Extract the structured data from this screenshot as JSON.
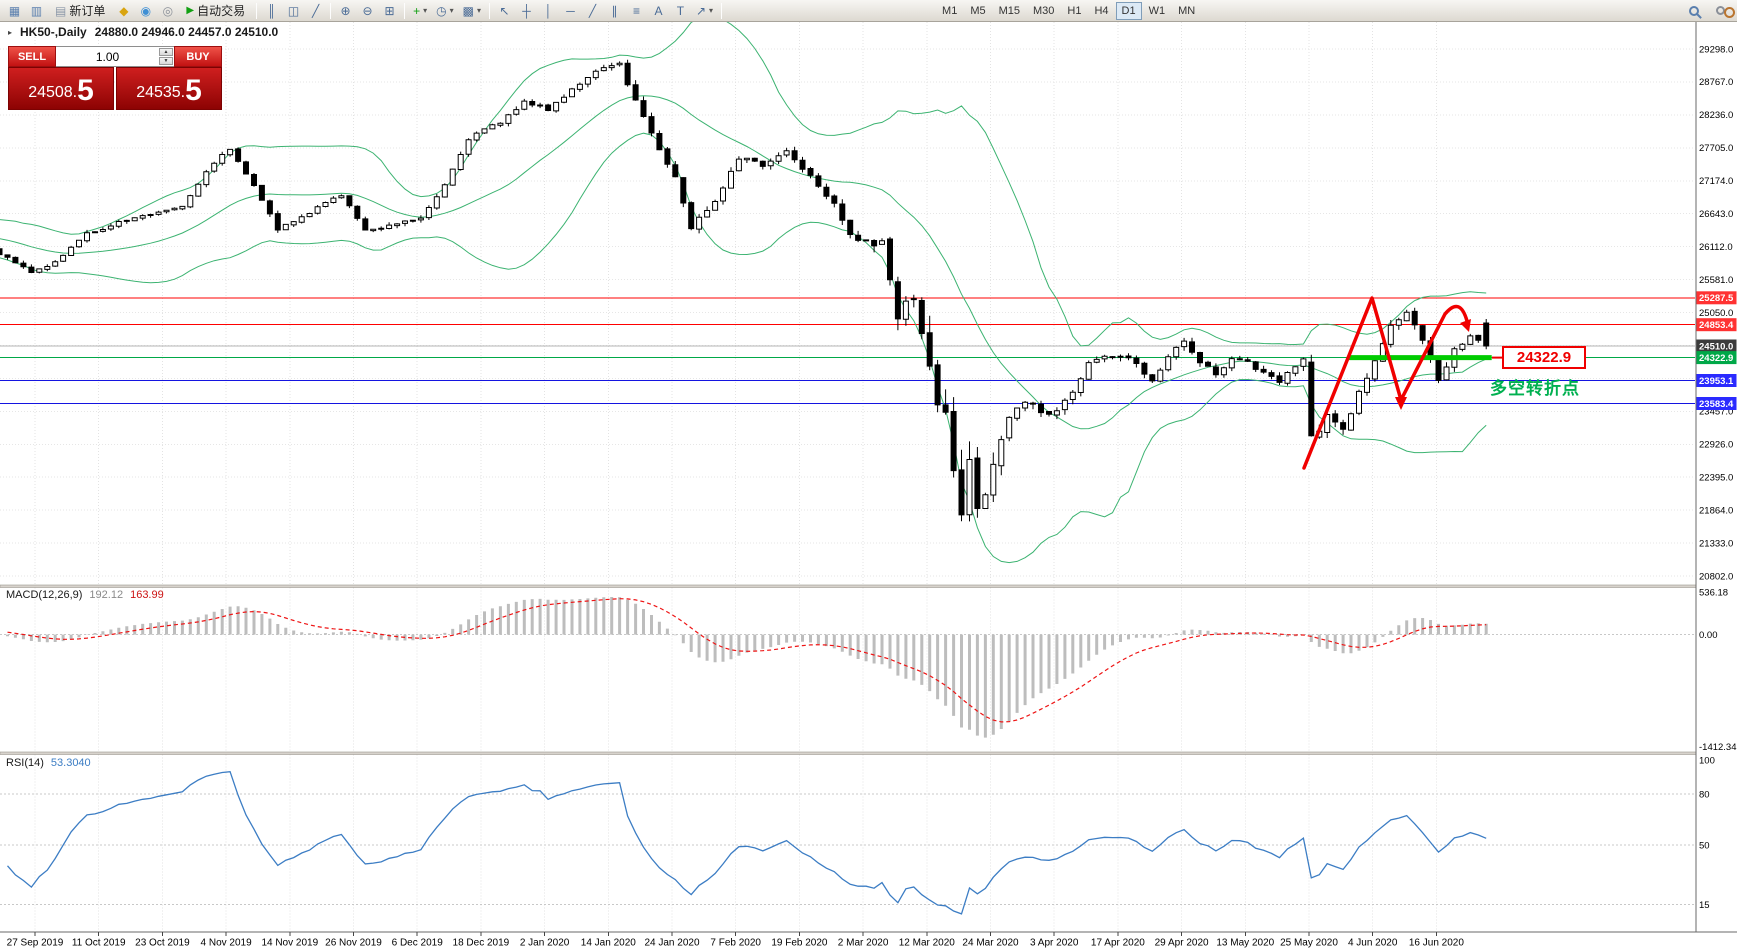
{
  "app": {
    "background": "#d6d3ce"
  },
  "toolbar": {
    "file_icons": [
      {
        "name": "new-chart-icon",
        "glyph": "▦",
        "color": "#5a7fae"
      },
      {
        "name": "profiles-icon",
        "glyph": "▥",
        "color": "#5a7fae"
      }
    ],
    "new_order": {
      "label": "新订单",
      "icon_glyph": "▤"
    },
    "app_icons": [
      {
        "name": "metaeditor-icon",
        "glyph": "◆",
        "color": "#d9a40f"
      },
      {
        "name": "market-icon",
        "glyph": "◉",
        "color": "#3f8fd4"
      },
      {
        "name": "mql5-icon",
        "glyph": "◎",
        "color": "#8a8f98"
      }
    ],
    "autotrading": {
      "label": "自动交易",
      "icon_glyph": "▶"
    },
    "chart_mode_icons": [
      {
        "name": "bars-mode-icon",
        "glyph": "║",
        "color": "#4a6b96"
      },
      {
        "name": "candles-mode-icon",
        "glyph": "◫",
        "color": "#4a6b96"
      },
      {
        "name": "line-mode-icon",
        "glyph": "╱",
        "color": "#4a6b96"
      }
    ],
    "zoom_icons": [
      {
        "name": "zoom-in-icon",
        "glyph": "⊕",
        "color": "#4a6b96"
      },
      {
        "name": "zoom-out-icon",
        "glyph": "⊖",
        "color": "#4a6b96"
      },
      {
        "name": "tile-windows-icon",
        "glyph": "⊞",
        "color": "#4a6b96"
      }
    ],
    "dropdown_icons": [
      {
        "name": "indicators-icon",
        "glyph": "+",
        "color": "#12a012",
        "dropdown": true
      },
      {
        "name": "periods-icon",
        "glyph": "◷",
        "color": "#4a6b96",
        "dropdown": true
      },
      {
        "name": "templates-icon",
        "glyph": "▩",
        "color": "#4a6b96",
        "dropdown": true
      }
    ],
    "draw_icons": [
      {
        "name": "cursor-icon",
        "glyph": "↖",
        "color": "#4a6b96"
      },
      {
        "name": "crosshair-icon",
        "glyph": "┼",
        "color": "#4a6b96"
      },
      {
        "name": "vline-tool-icon",
        "glyph": "│",
        "color": "#4a6b96"
      },
      {
        "name": "hline-tool-icon",
        "glyph": "─",
        "color": "#4a6b96"
      },
      {
        "name": "trendline-tool-icon",
        "glyph": "╱",
        "color": "#4a6b96"
      },
      {
        "name": "channel-tool-icon",
        "glyph": "∥",
        "color": "#4a6b96"
      },
      {
        "name": "fibo-tool-icon",
        "glyph": "≡",
        "color": "#4a6b96"
      },
      {
        "name": "text-tool-icon",
        "glyph": "A",
        "color": "#4a6b96"
      },
      {
        "name": "label-tool-icon",
        "glyph": "T",
        "color": "#4a6b96"
      },
      {
        "name": "arrows-tool-icon",
        "glyph": "↗",
        "color": "#4a6b96",
        "dropdown": true
      }
    ],
    "timeframes": [
      "M1",
      "M5",
      "M15",
      "M30",
      "H1",
      "H4",
      "D1",
      "W1",
      "MN"
    ],
    "active_timeframe": "D1"
  },
  "trade_panel": {
    "sell_label": "SELL",
    "buy_label": "BUY",
    "volume": "1.00",
    "sell_price": "24508.",
    "sell_price_big": "5",
    "buy_price": "24535.",
    "buy_price_big": "5"
  },
  "chart": {
    "title_symbol": "HK50-,Daily",
    "title_ohlc": "24880.0 24946.0 24457.0 24510.0"
  },
  "indicator_labels": {
    "macd_name": "MACD(12,26,9)",
    "macd_main_value": "192.12",
    "macd_signal_value": "163.99",
    "rsi_name": "RSI(14)",
    "rsi_value": "53.3040"
  },
  "annotations": {
    "price_callout": "24322.9",
    "turning_point": "多空转折点"
  },
  "chart_data": {
    "type": "candlestick",
    "symbol": "HK50-",
    "period": "Daily",
    "ohlc_current": {
      "open": 24880.0,
      "high": 24946.0,
      "low": 24457.0,
      "close": 24510.0
    },
    "price_axis_labels": [
      29298.0,
      28767.0,
      28236.0,
      27705.0,
      27174.0,
      26643.0,
      26112.0,
      25581.0,
      25050.0,
      24519.0,
      23988.0,
      23457.0,
      22926.0,
      22395.0,
      21864.0,
      21333.0,
      20802.0
    ],
    "date_labels": [
      "27 Sep 2019",
      "11 Oct 2019",
      "23 Oct 2019",
      "4 Nov 2019",
      "14 Nov 2019",
      "26 Nov 2019",
      "6 Dec 2019",
      "18 Dec 2019",
      "2 Jan 2020",
      "14 Jan 2020",
      "24 Jan 2020",
      "7 Feb 2020",
      "19 Feb 2020",
      "2 Mar 2020",
      "12 Mar 2020",
      "24 Mar 2020",
      "3 Apr 2020",
      "17 Apr 2020",
      "29 Apr 2020",
      "13 May 2020",
      "25 May 2020",
      "4 Jun 2020",
      "16 Jun 2020"
    ],
    "hlines": [
      {
        "price": 25287.5,
        "color": "#ff0000",
        "tag_bg": "#ff3232",
        "width": 1,
        "dash": ""
      },
      {
        "price": 24853.4,
        "color": "#ff0000",
        "tag_bg": "#ff3232",
        "width": 1,
        "dash": ""
      },
      {
        "price": 24510.0,
        "color": "#b4b4b4",
        "tag_bg": "#3c3c3c",
        "width": 1,
        "dash": ""
      },
      {
        "price": 24322.9,
        "color": "#00a848",
        "tag_bg": "#00a848",
        "width": 1,
        "dash": ""
      },
      {
        "price": 23953.1,
        "color": "#1414e0",
        "tag_bg": "#2a2aff",
        "width": 1,
        "dash": ""
      },
      {
        "price": 23583.4,
        "color": "#1414e0",
        "tag_bg": "#2a2aff",
        "width": 1,
        "dash": ""
      }
    ],
    "support_segment": {
      "price": 24322.9,
      "from_bar": 169,
      "to_bar": 187,
      "color": "#00cc00",
      "width": 5
    },
    "bollinger": {
      "period": 20,
      "deviation": 2,
      "color": "#3CB371"
    },
    "macd": {
      "fast": 12,
      "slow": 26,
      "signal": 9,
      "axis_labels": [
        {
          "v": 536.18,
          "t": "536.18"
        },
        {
          "v": 0,
          "t": "0.00"
        },
        {
          "v": -1412.34,
          "t": "-1412.34"
        }
      ],
      "range_max": 536.18,
      "range_min": -1412.34,
      "hist_color": "#bdbdbd",
      "signal_color": "#ee1414"
    },
    "rsi": {
      "period": 14,
      "axis_labels": [
        {
          "v": 100,
          "t": "100"
        },
        {
          "v": 80,
          "t": "80"
        },
        {
          "v": 50,
          "t": "50"
        },
        {
          "v": 15,
          "t": "15"
        }
      ],
      "levels": [
        80,
        50,
        15
      ],
      "color": "#3c7dc4"
    },
    "bars_from": -40,
    "bars_to": 186,
    "close_anchors": [
      [
        -40,
        25350
      ],
      [
        -33,
        25900
      ],
      [
        -26,
        26350
      ],
      [
        -18,
        26500
      ],
      [
        -10,
        26150
      ],
      [
        -4,
        26150
      ],
      [
        0,
        25960
      ],
      [
        3,
        25680
      ],
      [
        6,
        25860
      ],
      [
        10,
        26320
      ],
      [
        14,
        26500
      ],
      [
        18,
        26640
      ],
      [
        22,
        26780
      ],
      [
        26,
        27480
      ],
      [
        28,
        27680
      ],
      [
        31,
        27120
      ],
      [
        34,
        26380
      ],
      [
        38,
        26660
      ],
      [
        42,
        26960
      ],
      [
        45,
        26360
      ],
      [
        48,
        26470
      ],
      [
        52,
        26580
      ],
      [
        55,
        27120
      ],
      [
        58,
        27860
      ],
      [
        62,
        28120
      ],
      [
        65,
        28460
      ],
      [
        68,
        28320
      ],
      [
        71,
        28660
      ],
      [
        74,
        28920
      ],
      [
        77,
        29060
      ],
      [
        79,
        28460
      ],
      [
        81,
        27960
      ],
      [
        84,
        27220
      ],
      [
        86,
        26420
      ],
      [
        89,
        26860
      ],
      [
        92,
        27560
      ],
      [
        95,
        27420
      ],
      [
        98,
        27660
      ],
      [
        101,
        27260
      ],
      [
        104,
        26820
      ],
      [
        106,
        26320
      ],
      [
        108,
        26160
      ],
      [
        110,
        26140
      ],
      [
        112,
        25060
      ],
      [
        114,
        25260
      ],
      [
        116,
        24060
      ],
      [
        118,
        23320
      ],
      [
        120,
        21780
      ],
      [
        121,
        22660
      ],
      [
        122,
        21880
      ],
      [
        124,
        22560
      ],
      [
        126,
        23360
      ],
      [
        128,
        23620
      ],
      [
        131,
        23380
      ],
      [
        134,
        23760
      ],
      [
        136,
        24260
      ],
      [
        139,
        24360
      ],
      [
        141,
        24320
      ],
      [
        144,
        23960
      ],
      [
        146,
        24360
      ],
      [
        148,
        24620
      ],
      [
        150,
        24260
      ],
      [
        152,
        24060
      ],
      [
        154,
        24310
      ],
      [
        156,
        24260
      ],
      [
        158,
        24060
      ],
      [
        160,
        23960
      ],
      [
        162,
        24160
      ],
      [
        163,
        24290
      ],
      [
        164,
        22960
      ],
      [
        166,
        23360
      ],
      [
        168,
        23160
      ],
      [
        170,
        23760
      ],
      [
        172,
        24260
      ],
      [
        174,
        24820
      ],
      [
        176,
        25070
      ],
      [
        178,
        24560
      ],
      [
        180,
        23960
      ],
      [
        182,
        24460
      ],
      [
        184,
        24700
      ],
      [
        186,
        24510
      ]
    ],
    "vol_anchors": [
      [
        -40,
        110
      ],
      [
        0,
        105
      ],
      [
        20,
        105
      ],
      [
        40,
        115
      ],
      [
        60,
        110
      ],
      [
        74,
        120
      ],
      [
        77,
        140
      ],
      [
        80,
        190
      ],
      [
        84,
        200
      ],
      [
        88,
        160
      ],
      [
        95,
        140
      ],
      [
        100,
        150
      ],
      [
        105,
        190
      ],
      [
        108,
        220
      ],
      [
        110,
        320
      ],
      [
        112,
        520
      ],
      [
        114,
        420
      ],
      [
        116,
        650
      ],
      [
        118,
        600
      ],
      [
        120,
        760
      ],
      [
        122,
        700
      ],
      [
        124,
        450
      ],
      [
        126,
        320
      ],
      [
        130,
        240
      ],
      [
        134,
        200
      ],
      [
        140,
        170
      ],
      [
        145,
        160
      ],
      [
        150,
        150
      ],
      [
        155,
        140
      ],
      [
        160,
        150
      ],
      [
        163,
        170
      ],
      [
        164,
        620
      ],
      [
        165,
        320
      ],
      [
        167,
        220
      ],
      [
        170,
        190
      ],
      [
        174,
        200
      ],
      [
        176,
        210
      ],
      [
        178,
        200
      ],
      [
        180,
        190
      ],
      [
        183,
        170
      ],
      [
        186,
        150
      ]
    ],
    "trend_arrows": {
      "color": "#f00000"
    }
  }
}
